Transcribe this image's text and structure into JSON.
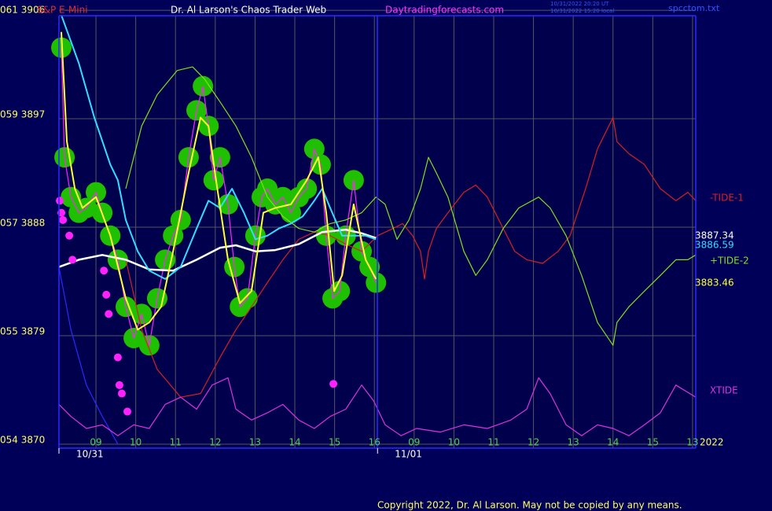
{
  "header": {
    "instrument": "S&P E-Mini",
    "site_title": "Dr. Al Larson's Chaos Trader Web",
    "site_url": "Daytradingforecasts.com",
    "timestamp_ut": "10/31/2022 20:20 UT",
    "timestamp_local": "10/31/2022 15:20 local",
    "file": "spcctom.txt"
  },
  "footer": {
    "year": "2022",
    "copyright": "Copyright 2022, Dr. Al Larson. May not be copied by any means."
  },
  "chart_data": {
    "type": "line",
    "grid": true,
    "xlim": [
      0.07,
      16.08
    ],
    "ylim": [
      3869.67,
      3905.55
    ],
    "yticks": [
      {
        "value": 3906,
        "label": "061  3906"
      },
      {
        "value": 3897,
        "label": "059  3897"
      },
      {
        "value": 3888,
        "label": "057  3888"
      },
      {
        "value": 3879,
        "label": "055  3879"
      },
      {
        "value": 3870,
        "label": "054  3870"
      }
    ],
    "xticks": [
      {
        "value": 1,
        "label": "09"
      },
      {
        "value": 2,
        "label": "10"
      },
      {
        "value": 3,
        "label": "11"
      },
      {
        "value": 4,
        "label": "12"
      },
      {
        "value": 5,
        "label": "13"
      },
      {
        "value": 6,
        "label": "14"
      },
      {
        "value": 7,
        "label": "15"
      },
      {
        "value": 8,
        "label": "16"
      },
      {
        "value": 9,
        "label": "09"
      },
      {
        "value": 10,
        "label": "10"
      },
      {
        "value": 11,
        "label": "11"
      },
      {
        "value": 12,
        "label": "12"
      },
      {
        "value": 13,
        "label": "13"
      },
      {
        "value": 14,
        "label": "14"
      },
      {
        "value": 15,
        "label": "15"
      },
      {
        "value": 16,
        "label": "13"
      }
    ],
    "dates": [
      {
        "value": 0.07,
        "label": "10/31"
      },
      {
        "value": 8.08,
        "label": "11/01"
      }
    ],
    "series": [
      {
        "color": "#2a2aff",
        "style": "line",
        "x": [
          0.07,
          0.37,
          0.76,
          1.16,
          1.55
        ],
        "values": [
          3884.7,
          3879.5,
          3874.9,
          3872.3,
          3870
        ]
      },
      {
        "name": "-TIDE-1",
        "color": "#d82020",
        "style": "line",
        "x": [
          1.75,
          2.15,
          2.54,
          3.13,
          3.63,
          4.12,
          4.52,
          4.91,
          5.31,
          5.7,
          6.1,
          6.49,
          6.89,
          7.28,
          7.68,
          8.08,
          8.47,
          8.71,
          8.96,
          9.16,
          9.26,
          9.36,
          9.56,
          9.85,
          10.25,
          10.55,
          10.84,
          11.24,
          11.53,
          11.83,
          12.23,
          12.62,
          12.92,
          13.31,
          13.61,
          14.0,
          14.1,
          14.4,
          14.79,
          15.19,
          15.58,
          15.88,
          16.08
        ],
        "values": [
          3885.3,
          3879.5,
          3876.2,
          3873.9,
          3874.2,
          3877.2,
          3879.5,
          3881.4,
          3883.4,
          3885.3,
          3887.0,
          3887.6,
          3887.3,
          3886.6,
          3886.0,
          3887.3,
          3887.9,
          3888.3,
          3887.3,
          3886.0,
          3883.7,
          3886.0,
          3887.9,
          3889.2,
          3890.9,
          3891.5,
          3890.5,
          3887.9,
          3886.0,
          3885.3,
          3885.0,
          3886.0,
          3887.3,
          3891.2,
          3894.5,
          3897.1,
          3895.1,
          3894.1,
          3893.2,
          3891.2,
          3890.2,
          3890.9,
          3890.2
        ]
      },
      {
        "name": "+TIDE-2",
        "color": "#80e020",
        "style": "line",
        "x": [
          1.75,
          2.15,
          2.54,
          3.04,
          3.43,
          3.73,
          4.12,
          4.52,
          4.91,
          5.31,
          5.7,
          6.1,
          6.49,
          6.89,
          7.28,
          7.68,
          8.04,
          8.27,
          8.57,
          8.87,
          9.16,
          9.26,
          9.36,
          9.56,
          9.85,
          10.25,
          10.55,
          10.84,
          11.24,
          11.63,
          12.13,
          12.42,
          12.82,
          13.21,
          13.61,
          14.0,
          14.1,
          14.4,
          14.79,
          15.19,
          15.58,
          15.88,
          16.08
        ],
        "values": [
          3891.2,
          3896.4,
          3899.0,
          3901.0,
          3901.3,
          3900.3,
          3898.4,
          3896.4,
          3893.8,
          3890.5,
          3888.9,
          3887.9,
          3887.6,
          3888.3,
          3888.6,
          3889.2,
          3890.5,
          3889.9,
          3887.0,
          3888.6,
          3891.2,
          3892.5,
          3893.8,
          3892.5,
          3890.5,
          3886.0,
          3884.0,
          3885.3,
          3887.9,
          3889.6,
          3890.5,
          3889.6,
          3887.3,
          3884.0,
          3880.1,
          3878.2,
          3880.1,
          3881.4,
          3882.7,
          3884.0,
          3885.3,
          3885.3,
          3885.7
        ]
      },
      {
        "name": "XTIDE",
        "color": "#dd33dd",
        "style": "line",
        "x": [
          0.07,
          0.37,
          0.76,
          1.16,
          1.55,
          1.95,
          2.34,
          2.74,
          3.13,
          3.53,
          3.92,
          4.32,
          4.52,
          4.91,
          5.31,
          5.7,
          6.1,
          6.49,
          6.89,
          7.28,
          7.68,
          7.98,
          8.27,
          8.67,
          9.06,
          9.66,
          10.25,
          10.84,
          11.43,
          11.83,
          12.13,
          12.42,
          12.82,
          13.21,
          13.61,
          14.0,
          14.4,
          14.79,
          15.19,
          15.58,
          16.08
        ],
        "values": [
          3873.3,
          3872.3,
          3871.3,
          3871.6,
          3870.7,
          3871.6,
          3871.3,
          3873.3,
          3873.9,
          3872.9,
          3874.9,
          3875.5,
          3872.9,
          3872.0,
          3872.6,
          3873.3,
          3872.0,
          3871.3,
          3872.3,
          3872.9,
          3874.9,
          3873.6,
          3871.6,
          3870.7,
          3871.3,
          3871.0,
          3871.6,
          3871.3,
          3872.0,
          3872.9,
          3875.5,
          3874.2,
          3871.6,
          3870.7,
          3871.6,
          3871.3,
          3870.7,
          3871.6,
          3872.6,
          3874.9,
          3873.9
        ]
      },
      {
        "color": "#ffffff",
        "style": "line",
        "width": 2.5,
        "end_label": "3887.34",
        "x": [
          0.07,
          0.57,
          1.16,
          1.75,
          2.34,
          2.94,
          3.53,
          4.12,
          4.52,
          5.01,
          5.51,
          6.1,
          6.69,
          7.28,
          7.68,
          8.04
        ],
        "values": [
          3884.7,
          3885.3,
          3885.7,
          3885.3,
          3884.5,
          3884.4,
          3885.3,
          3886.3,
          3886.5,
          3886.0,
          3886.1,
          3886.6,
          3887.6,
          3887.8,
          3887.5,
          3887.1
        ]
      },
      {
        "color": "#33ddff",
        "style": "line",
        "width": 2,
        "end_label": "3886.59",
        "x": [
          0.13,
          0.57,
          0.96,
          1.36,
          1.55,
          1.75,
          2.05,
          2.34,
          2.74,
          3.13,
          3.53,
          3.83,
          4.12,
          4.42,
          4.72,
          5.01,
          5.31,
          5.6,
          5.9,
          6.2,
          6.49,
          6.69,
          6.89,
          7.19,
          7.48,
          7.78,
          8.04
        ],
        "values": [
          3905.6,
          3901.6,
          3897.1,
          3893.2,
          3891.9,
          3888.6,
          3886.0,
          3884.4,
          3883.7,
          3884.7,
          3887.9,
          3890.2,
          3889.6,
          3891.2,
          3889.2,
          3887.0,
          3887.3,
          3887.9,
          3888.3,
          3888.9,
          3890.2,
          3891.2,
          3889.6,
          3887.3,
          3887.3,
          3887.3,
          3887.0
        ]
      },
      {
        "color": "#ff22ff",
        "style": "line",
        "halo_color": "#1fc000",
        "x": [
          0.13,
          0.21,
          0.37,
          0.57,
          0.76,
          1.0,
          1.16,
          1.36,
          1.55,
          1.75,
          1.95,
          2.15,
          2.34,
          2.54,
          2.74,
          2.94,
          3.13,
          3.33,
          3.53,
          3.69,
          3.83,
          3.96,
          4.12,
          4.32,
          4.48,
          4.62,
          4.81,
          5.01,
          5.17,
          5.31,
          5.51,
          5.7,
          5.9,
          6.1,
          6.3,
          6.49,
          6.65,
          6.79,
          6.95,
          7.13,
          7.28,
          7.48,
          7.68,
          7.88,
          8.04
        ],
        "values": [
          3902.9,
          3893.8,
          3890.5,
          3889.2,
          3889.6,
          3890.9,
          3889.2,
          3887.3,
          3885.3,
          3881.4,
          3878.8,
          3880.8,
          3878.2,
          3882.1,
          3885.3,
          3887.3,
          3888.6,
          3893.8,
          3897.7,
          3899.7,
          3896.4,
          3891.9,
          3893.8,
          3889.9,
          3884.7,
          3881.4,
          3882.1,
          3887.3,
          3890.5,
          3891.2,
          3889.9,
          3890.5,
          3889.2,
          3890.5,
          3891.2,
          3894.5,
          3893.2,
          3887.3,
          3882.1,
          3882.7,
          3887.3,
          3891.9,
          3886.0,
          3884.7,
          3883.4
        ]
      },
      {
        "color": "#ffff33",
        "style": "line",
        "width": 2,
        "end_label": "3883.46",
        "x": [
          0.13,
          0.27,
          0.47,
          0.66,
          1.0,
          1.36,
          1.75,
          2.05,
          2.34,
          2.64,
          2.94,
          3.33,
          3.63,
          3.83,
          4.02,
          4.32,
          4.62,
          4.91,
          5.21,
          5.51,
          5.9,
          6.3,
          6.59,
          6.79,
          6.99,
          7.19,
          7.48,
          7.78,
          8.04
        ],
        "values": [
          3904.2,
          3895.1,
          3891.2,
          3889.6,
          3890.5,
          3887.3,
          3882.1,
          3879.5,
          3880.1,
          3881.4,
          3886.0,
          3892.5,
          3897.1,
          3896.4,
          3891.9,
          3885.3,
          3881.7,
          3882.7,
          3889.2,
          3889.6,
          3889.9,
          3891.9,
          3893.8,
          3889.2,
          3882.7,
          3884.0,
          3889.9,
          3885.3,
          3883.7
        ]
      },
      {
        "color": "#ff22ff",
        "style": "dots",
        "x": [
          0.09,
          0.13,
          0.17,
          0.33,
          0.41,
          1.2,
          1.26,
          1.32,
          1.55,
          1.59,
          1.65,
          1.79,
          6.97
        ],
        "values": [
          3890.2,
          3889.2,
          3888.6,
          3887.3,
          3885.3,
          3884.4,
          3882.4,
          3880.8,
          3877.2,
          3874.9,
          3874.2,
          3872.7,
          3875.0
        ]
      }
    ]
  }
}
